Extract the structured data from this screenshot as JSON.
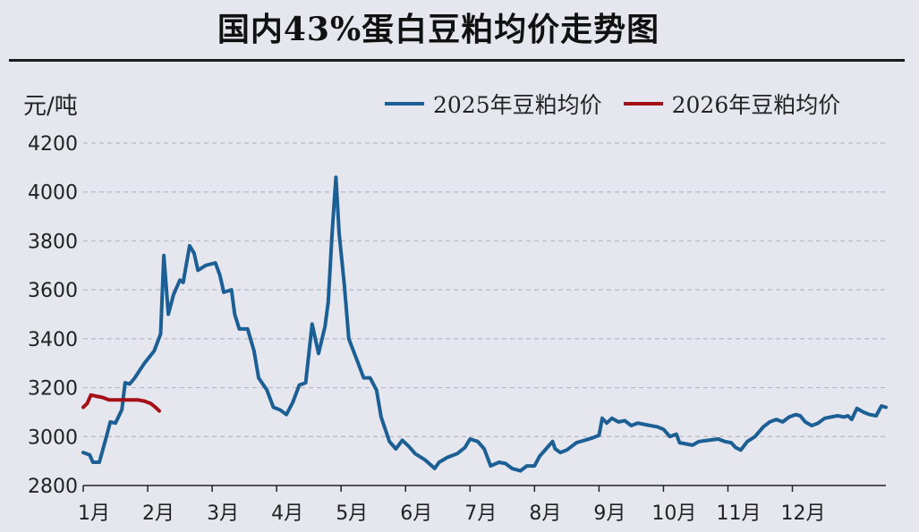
{
  "title": "国内43%蛋白豆粕均价走势图",
  "chart_data": {
    "type": "line",
    "title": "国内43%蛋白豆粕均价走势图",
    "ylabel": "元/吨",
    "xlabel": "",
    "ylim": [
      2800,
      4200
    ],
    "yticks": [
      2800,
      3000,
      3200,
      3400,
      3600,
      3800,
      4000,
      4200
    ],
    "xlim": [
      1,
      13.0
    ],
    "xticks": [
      {
        "x": 1,
        "label": "1月"
      },
      {
        "x": 2,
        "label": "2月"
      },
      {
        "x": 3,
        "label": "3月"
      },
      {
        "x": 4,
        "label": "4月"
      },
      {
        "x": 5,
        "label": "5月"
      },
      {
        "x": 6,
        "label": "6月"
      },
      {
        "x": 7,
        "label": "7月"
      },
      {
        "x": 8,
        "label": "8月"
      },
      {
        "x": 9,
        "label": "9月"
      },
      {
        "x": 10,
        "label": "10月"
      },
      {
        "x": 11,
        "label": "11月"
      },
      {
        "x": 12,
        "label": "12月"
      }
    ],
    "grid": "horizontal dashed",
    "legend_position": "top-right",
    "series": [
      {
        "name": "2025年豆粕均价",
        "color": "#1c5f94",
        "points": [
          [
            1.0,
            2935
          ],
          [
            1.1,
            2925
          ],
          [
            1.15,
            2895
          ],
          [
            1.25,
            2895
          ],
          [
            1.35,
            2990
          ],
          [
            1.42,
            3060
          ],
          [
            1.5,
            3055
          ],
          [
            1.6,
            3110
          ],
          [
            1.65,
            3220
          ],
          [
            1.72,
            3215
          ],
          [
            1.8,
            3240
          ],
          [
            1.95,
            3300
          ],
          [
            2.1,
            3350
          ],
          [
            2.2,
            3420
          ],
          [
            2.25,
            3740
          ],
          [
            2.32,
            3500
          ],
          [
            2.4,
            3580
          ],
          [
            2.5,
            3640
          ],
          [
            2.55,
            3630
          ],
          [
            2.65,
            3780
          ],
          [
            2.72,
            3750
          ],
          [
            2.78,
            3680
          ],
          [
            2.9,
            3700
          ],
          [
            3.05,
            3710
          ],
          [
            3.12,
            3660
          ],
          [
            3.18,
            3590
          ],
          [
            3.3,
            3600
          ],
          [
            3.35,
            3500
          ],
          [
            3.42,
            3440
          ],
          [
            3.55,
            3440
          ],
          [
            3.65,
            3350
          ],
          [
            3.72,
            3240
          ],
          [
            3.85,
            3190
          ],
          [
            3.95,
            3120
          ],
          [
            4.05,
            3110
          ],
          [
            4.15,
            3090
          ],
          [
            4.25,
            3140
          ],
          [
            4.35,
            3210
          ],
          [
            4.45,
            3220
          ],
          [
            4.55,
            3460
          ],
          [
            4.65,
            3340
          ],
          [
            4.75,
            3450
          ],
          [
            4.8,
            3550
          ],
          [
            4.86,
            3830
          ],
          [
            4.92,
            4060
          ],
          [
            4.97,
            3830
          ],
          [
            5.05,
            3620
          ],
          [
            5.12,
            3400
          ],
          [
            5.25,
            3310
          ],
          [
            5.35,
            3240
          ],
          [
            5.45,
            3240
          ],
          [
            5.55,
            3190
          ],
          [
            5.62,
            3080
          ],
          [
            5.75,
            2980
          ],
          [
            5.85,
            2950
          ],
          [
            5.95,
            2985
          ],
          [
            6.05,
            2960
          ],
          [
            6.15,
            2930
          ],
          [
            6.3,
            2905
          ],
          [
            6.45,
            2870
          ],
          [
            6.52,
            2895
          ],
          [
            6.65,
            2915
          ],
          [
            6.8,
            2930
          ],
          [
            6.92,
            2955
          ],
          [
            7.0,
            2990
          ],
          [
            7.12,
            2980
          ],
          [
            7.22,
            2950
          ],
          [
            7.32,
            2880
          ],
          [
            7.45,
            2895
          ],
          [
            7.55,
            2890
          ],
          [
            7.65,
            2870
          ],
          [
            7.78,
            2860
          ],
          [
            7.88,
            2880
          ],
          [
            8.0,
            2880
          ],
          [
            8.08,
            2920
          ],
          [
            8.18,
            2950
          ],
          [
            8.28,
            2980
          ],
          [
            8.32,
            2950
          ],
          [
            8.4,
            2935
          ],
          [
            8.5,
            2945
          ],
          [
            8.65,
            2975
          ],
          [
            8.78,
            2985
          ],
          [
            8.9,
            2995
          ],
          [
            9.0,
            3005
          ],
          [
            9.05,
            3075
          ],
          [
            9.12,
            3055
          ],
          [
            9.2,
            3075
          ],
          [
            9.3,
            3060
          ],
          [
            9.4,
            3065
          ],
          [
            9.5,
            3045
          ],
          [
            9.6,
            3055
          ],
          [
            9.7,
            3050
          ],
          [
            9.8,
            3045
          ],
          [
            9.9,
            3040
          ],
          [
            10.0,
            3030
          ],
          [
            10.1,
            3000
          ],
          [
            10.2,
            3010
          ],
          [
            10.25,
            2975
          ],
          [
            10.35,
            2970
          ],
          [
            10.45,
            2965
          ],
          [
            10.55,
            2980
          ],
          [
            10.7,
            2985
          ],
          [
            10.85,
            2990
          ],
          [
            10.95,
            2980
          ],
          [
            11.05,
            2975
          ],
          [
            11.12,
            2955
          ],
          [
            11.2,
            2945
          ],
          [
            11.3,
            2980
          ],
          [
            11.42,
            3000
          ],
          [
            11.55,
            3040
          ],
          [
            11.65,
            3060
          ],
          [
            11.75,
            3070
          ],
          [
            11.85,
            3060
          ],
          [
            11.95,
            3080
          ],
          [
            12.05,
            3090
          ],
          [
            12.12,
            3085
          ],
          [
            12.2,
            3060
          ],
          [
            12.3,
            3045
          ],
          [
            12.4,
            3055
          ],
          [
            12.5,
            3075
          ],
          [
            12.6,
            3080
          ],
          [
            12.7,
            3085
          ],
          [
            12.8,
            3080
          ],
          [
            12.86,
            3085
          ],
          [
            12.92,
            3070
          ],
          [
            13.0,
            3115
          ],
          [
            13.1,
            3100
          ],
          [
            13.2,
            3090
          ],
          [
            13.3,
            3085
          ],
          [
            13.38,
            3125
          ],
          [
            13.45,
            3120
          ]
        ]
      },
      {
        "name": "2026年豆粕均价",
        "color": "#a51016",
        "points": [
          [
            1.0,
            3120
          ],
          [
            1.06,
            3135
          ],
          [
            1.12,
            3170
          ],
          [
            1.2,
            3165
          ],
          [
            1.3,
            3160
          ],
          [
            1.4,
            3150
          ],
          [
            1.55,
            3150
          ],
          [
            1.7,
            3150
          ],
          [
            1.85,
            3150
          ],
          [
            1.95,
            3145
          ],
          [
            2.05,
            3135
          ],
          [
            2.12,
            3120
          ],
          [
            2.18,
            3105
          ]
        ]
      }
    ]
  }
}
